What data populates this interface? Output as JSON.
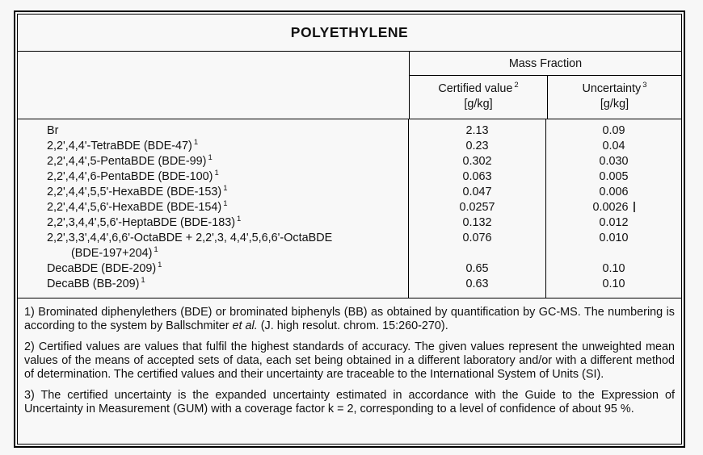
{
  "title": "POLYETHYLENE",
  "table": {
    "group_header": "Mass Fraction",
    "columns": [
      {
        "label": "Certified value",
        "sup": "2",
        "unit": "[g/kg]"
      },
      {
        "label": "Uncertainty",
        "sup": "3",
        "unit": "[g/kg]"
      }
    ],
    "rows": [
      {
        "name": "Br",
        "sup": "",
        "value": "2.13",
        "uncertainty": "0.09"
      },
      {
        "name": "2,2',4,4'-TetraBDE (BDE-47)",
        "sup": "1",
        "value": "0.23",
        "uncertainty": "0.04"
      },
      {
        "name": "2,2',4,4',5-PentaBDE (BDE-99)",
        "sup": "1",
        "value": "0.302",
        "uncertainty": "0.030"
      },
      {
        "name": "2,2',4,4',6-PentaBDE (BDE-100)",
        "sup": "1",
        "value": "0.063",
        "uncertainty": "0.005"
      },
      {
        "name": "2,2',4,4',5,5'-HexaBDE (BDE-153)",
        "sup": "1",
        "value": "0.047",
        "uncertainty": "0.006"
      },
      {
        "name": "2,2',4,4',5,6'-HexaBDE (BDE-154)",
        "sup": "1",
        "value": "0.0257",
        "uncertainty": "0.0026"
      },
      {
        "name": "2,2',3,4,4',5,6'-HeptaBDE (BDE-183)",
        "sup": "1",
        "value": "0.132",
        "uncertainty": "0.012"
      },
      {
        "name": "2,2',3,3',4,4',6,6'-OctaBDE + 2,2',3, 4,4',5,6,6'-OctaBDE",
        "name_line2": "(BDE-197+204)",
        "sup": "1",
        "value": "0.076",
        "uncertainty": "0.010"
      },
      {
        "name": "DecaBDE (BDE-209)",
        "sup": "1",
        "value": "0.65",
        "uncertainty": "0.10"
      },
      {
        "name": "DecaBB (BB-209)",
        "sup": "1",
        "value": "0.63",
        "uncertainty": "0.10"
      }
    ]
  },
  "footnotes": {
    "fn1_pre": "1) Brominated diphenylethers (BDE) or brominated biphenyls (BB) as obtained by quantification by GC-MS. The numbering is according to the system by Ballschmiter ",
    "fn1_italic": "et al.",
    "fn1_post": " (J. high resolut. chrom. 15:260-270).",
    "fn2": "2) Certified values are values that fulfil the highest standards of accuracy. The given values represent the unweighted mean values of the means of accepted sets of data, each set being obtained in a different laboratory and/or with a different method of determination. The certified values and their uncertainty are traceable to the International System of Units (SI).",
    "fn3": "3) The certified uncertainty is the expanded uncertainty estimated in accordance with the Guide to the Expression of Uncertainty in Measurement (GUM) with a coverage factor k = 2, corresponding to a level of confidence of about 95 %."
  },
  "colors": {
    "border": "#000000",
    "background": "#f8f8f8",
    "text": "#111111"
  }
}
